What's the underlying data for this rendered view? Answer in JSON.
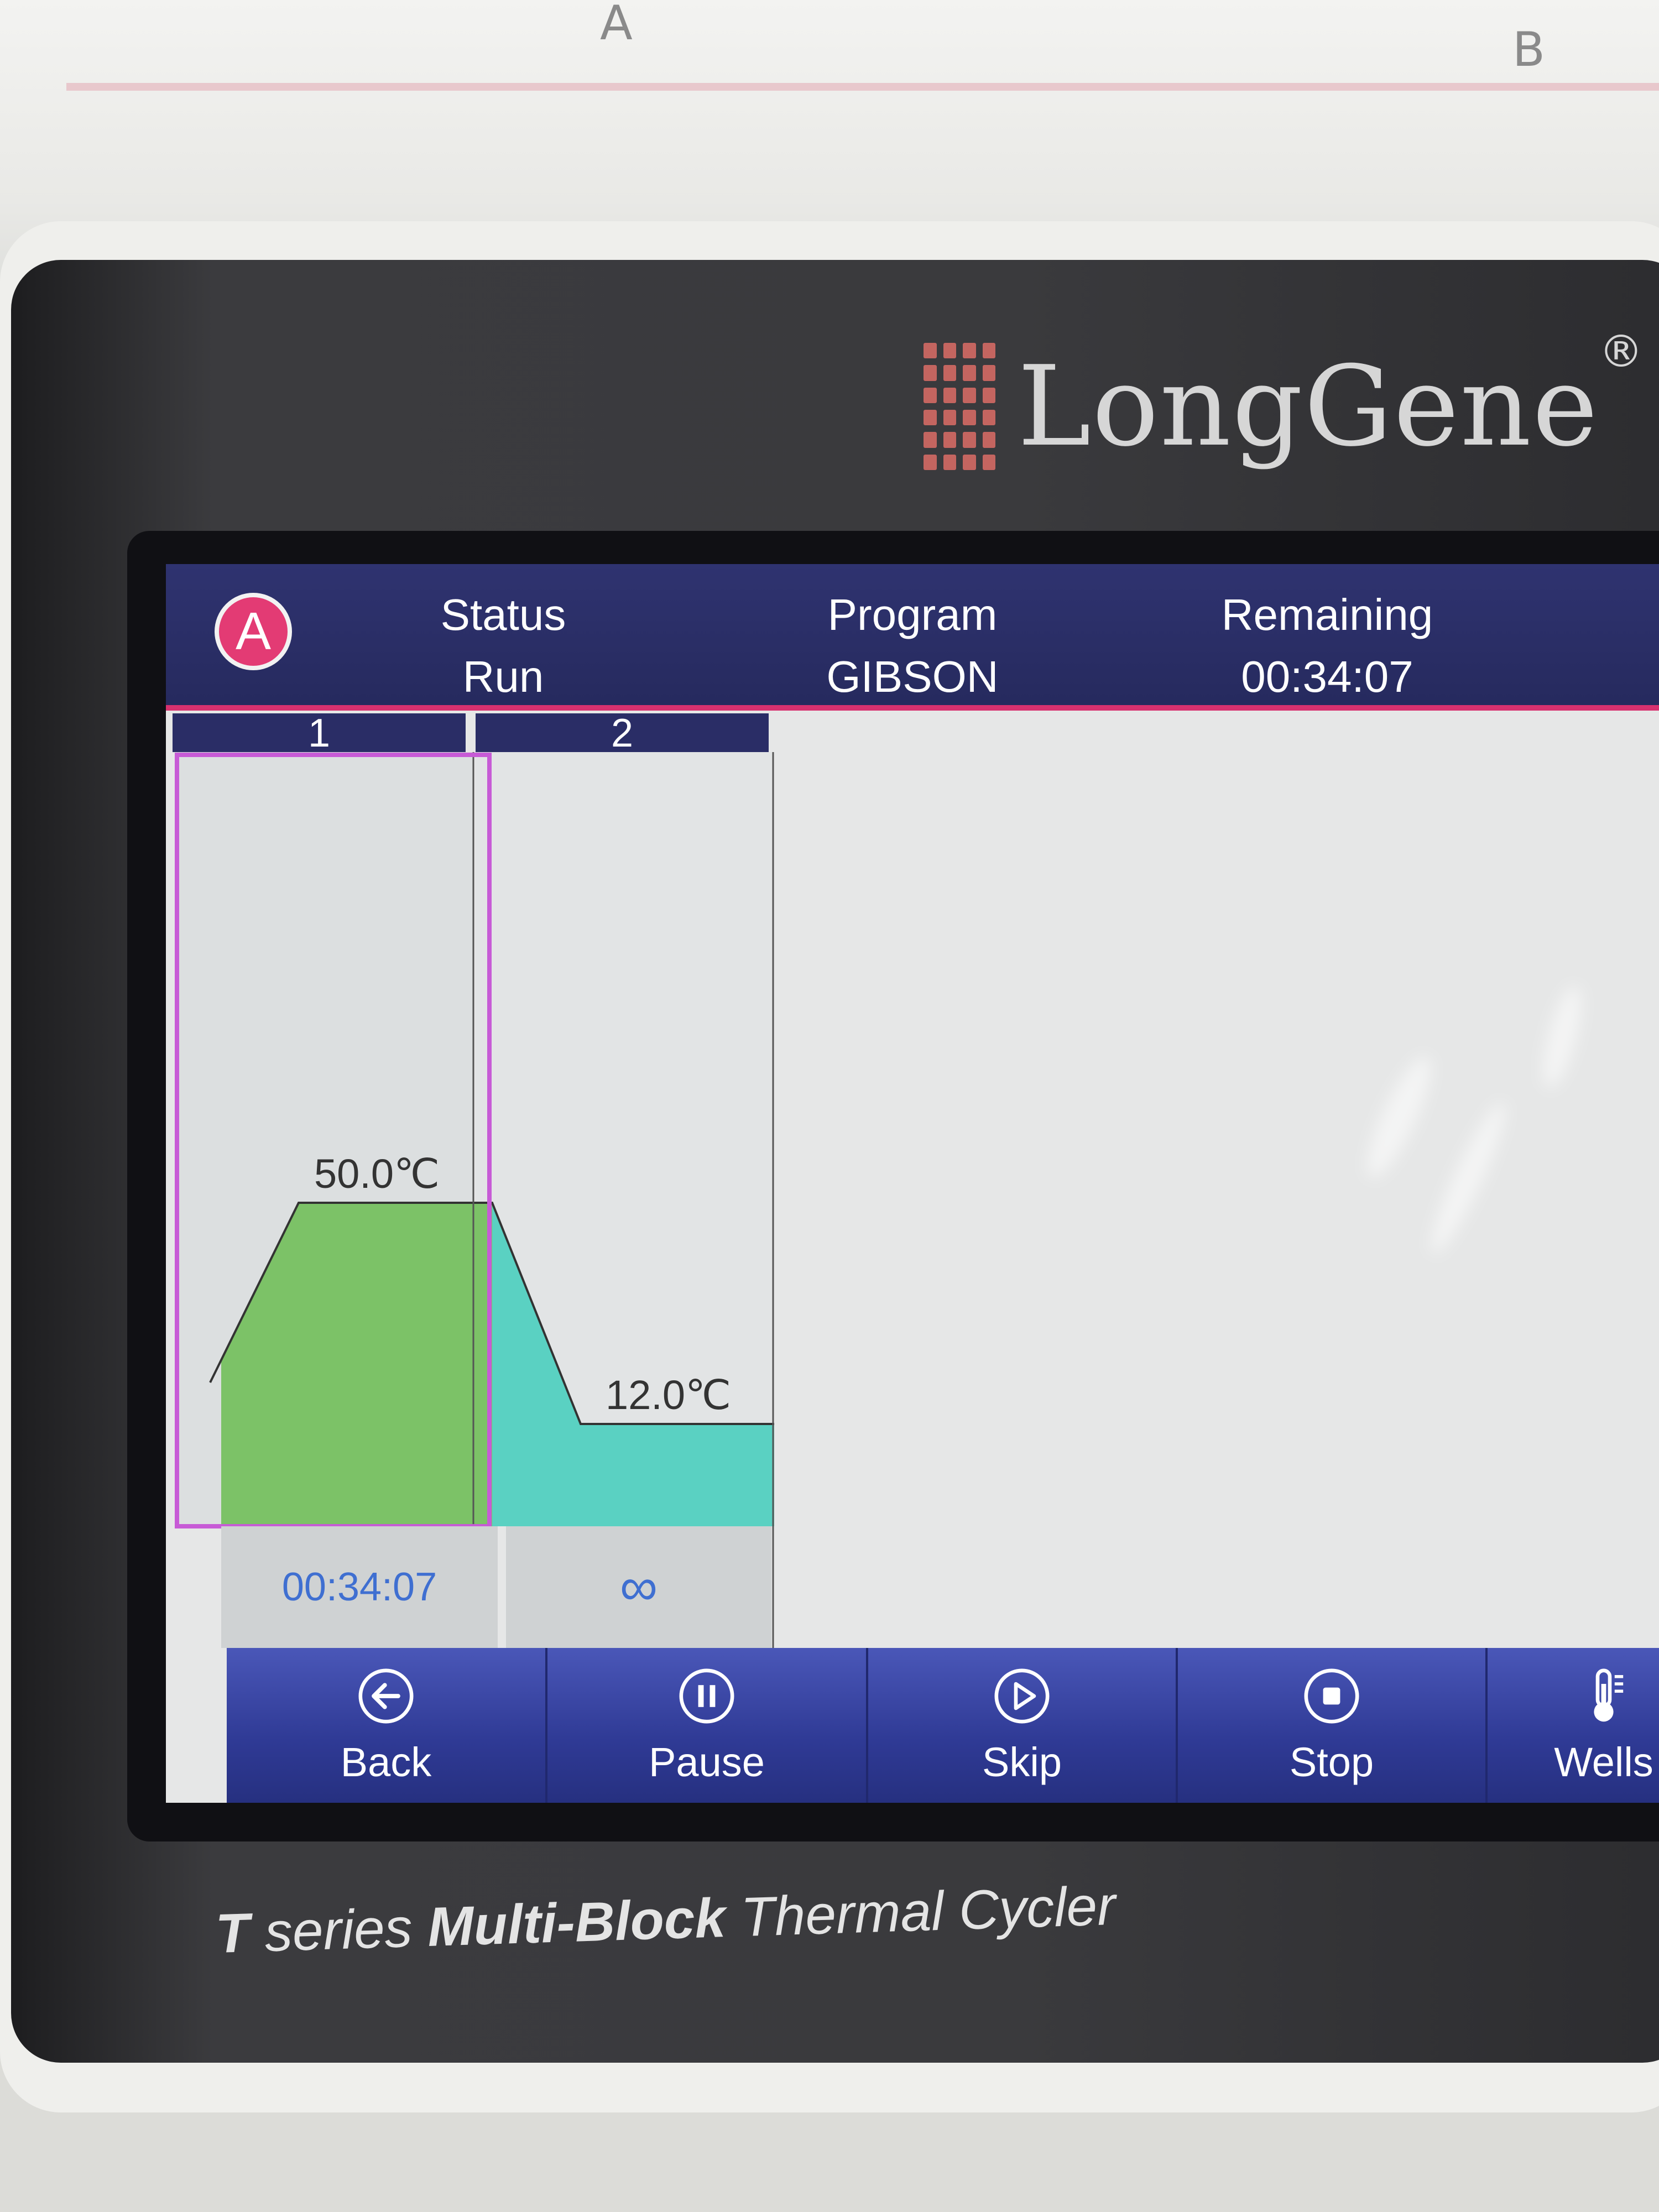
{
  "device": {
    "block_letters": [
      "A",
      "B"
    ],
    "brand": "LongGene",
    "brand_mark": "®",
    "model_line": {
      "t": "T",
      "series": "series",
      "multi_block": "Multi-Block",
      "thermal_cycler": "Thermal Cycler"
    }
  },
  "header": {
    "block_badge": "A",
    "status_label": "Status",
    "status_value": "Run",
    "program_label": "Program",
    "program_value": "GIBSON",
    "remaining_label": "Remaining",
    "remaining_value": "00:34:07"
  },
  "steps": [
    {
      "number": "1",
      "temperature": "50.0℃",
      "time": "00:34:07",
      "active": true
    },
    {
      "number": "2",
      "temperature": "12.0℃",
      "time": "∞",
      "active": false
    }
  ],
  "footer": {
    "back": "Back",
    "pause": "Pause",
    "skip": "Skip",
    "stop": "Stop",
    "wells": "Wells"
  },
  "colors": {
    "header_bg": "#2a2e66",
    "accent_pink": "#d8316f",
    "step1_fill": "#7cc267",
    "step2_fill": "#5ad1c2",
    "active_outline": "#c75bd6",
    "time_text": "#3f6fd1",
    "footer_bg": "#3441a0"
  }
}
